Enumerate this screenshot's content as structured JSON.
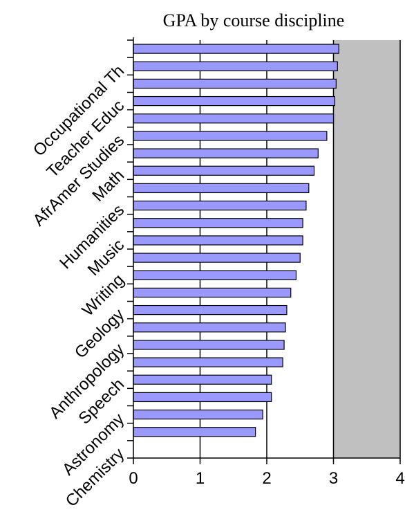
{
  "chart_data": {
    "type": "bar",
    "orientation": "horizontal",
    "title": "GPA by course discipline",
    "xlabel": "",
    "ylabel": "",
    "xlim": [
      0,
      4
    ],
    "xticks": [
      "0",
      "1",
      "2",
      "3",
      "4"
    ],
    "grid": "vertical",
    "shaded_region": [
      3,
      4
    ],
    "plot_background": "#c0c0c0",
    "bar_color": "#9999ff",
    "category_order": "top-to-bottom",
    "categories": [
      "",
      "Occupational Th",
      "",
      "Teacher Educ",
      "",
      "AfrAmer Studies",
      "",
      "Math",
      "",
      "Humanities",
      "",
      "Music",
      "",
      "Writing",
      "",
      "Geology",
      "",
      "Anthropology",
      "",
      "Speech",
      "",
      "Astronomy",
      "",
      "Chemistry"
    ],
    "values": [
      3.08,
      3.06,
      3.04,
      3.02,
      3.0,
      2.9,
      2.77,
      2.71,
      2.63,
      2.59,
      2.54,
      2.54,
      2.5,
      2.44,
      2.36,
      2.3,
      2.28,
      2.26,
      2.24,
      2.07,
      2.07,
      1.94,
      1.83,
      0
    ]
  }
}
